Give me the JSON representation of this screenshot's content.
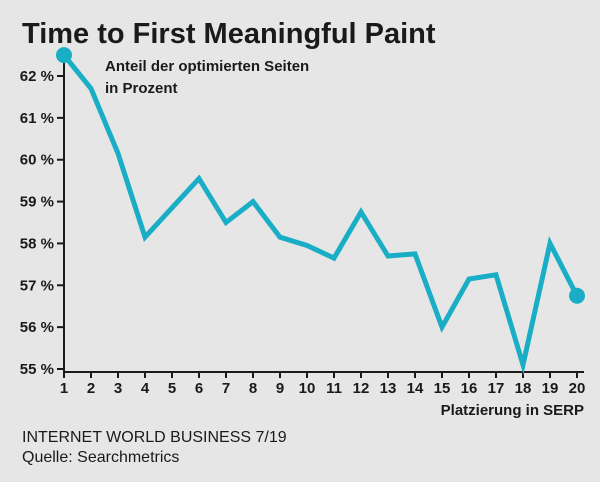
{
  "chart_data": {
    "type": "line",
    "title": "Time to First Meaningful Paint",
    "subtitle_lines": [
      "Anteil der optimierten Seiten",
      "in Prozent"
    ],
    "xlabel": "Platzierung in SERP",
    "ylabel": "",
    "x": [
      1,
      2,
      3,
      4,
      5,
      6,
      7,
      8,
      9,
      10,
      11,
      12,
      13,
      14,
      15,
      16,
      17,
      18,
      19,
      20
    ],
    "x_tick_labels": [
      "1",
      "2",
      "3",
      "4",
      "5",
      "6",
      "7",
      "8",
      "9",
      "10",
      "11",
      "12",
      "13",
      "14",
      "15",
      "16",
      "17",
      "18",
      "19",
      "20"
    ],
    "series": [
      {
        "values": [
          62.5,
          61.7,
          60.15,
          58.15,
          58.85,
          59.55,
          58.5,
          59.0,
          58.15,
          57.95,
          57.65,
          58.75,
          57.7,
          57.75,
          56.0,
          57.15,
          57.25,
          55.1,
          58.0,
          56.75
        ]
      }
    ],
    "ylim": [
      55,
      62.5
    ],
    "y_ticks": [
      55,
      56,
      57,
      58,
      59,
      60,
      61,
      62
    ],
    "y_tick_labels": [
      "55 %",
      "56 %",
      "57 %",
      "58 %",
      "59 %",
      "60 %",
      "61 %",
      "62 %"
    ],
    "grid": false,
    "line_color": "#1aaec6",
    "axis_color": "#1a1a1a",
    "background": "#e6e6e6"
  },
  "footer": {
    "line1": "INTERNET WORLD BUSINESS 7/19",
    "line2": "Quelle: Searchmetrics"
  }
}
